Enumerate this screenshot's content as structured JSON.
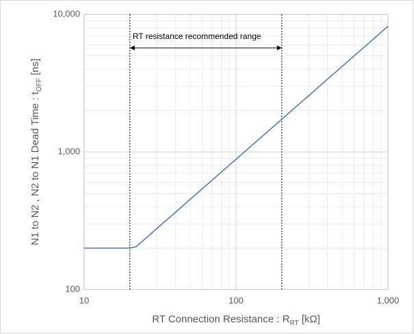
{
  "chart_data": {
    "type": "line",
    "x_label": {
      "text": "RT Connection Resistance : R",
      "sub": "RT",
      "suffix": " [kΩ]"
    },
    "y_label": {
      "text": "N1 to N2 , N2 to N1 Dead Time : t",
      "sub": "OFF",
      "suffix": " [ns]"
    },
    "x": [
      10,
      20,
      22,
      1000
    ],
    "series": [
      {
        "name": "tOFF",
        "color": "#4472c4",
        "values": [
          200,
          200,
          205,
          8200
        ]
      }
    ],
    "xlim": [
      10,
      1000
    ],
    "ylim": [
      100,
      10000
    ],
    "xticks": [
      10,
      100,
      {
        "value": 1000,
        "label": "1,000"
      }
    ],
    "yticks": [
      100,
      {
        "value": 1000,
        "label": "1,000"
      },
      {
        "value": 10000,
        "label": "10,000"
      }
    ],
    "xscale": "log",
    "yscale": "log",
    "grid": true,
    "minor_grid": true,
    "range_lines": [
      20,
      200
    ],
    "annotation": "RT resistance recommended range"
  }
}
